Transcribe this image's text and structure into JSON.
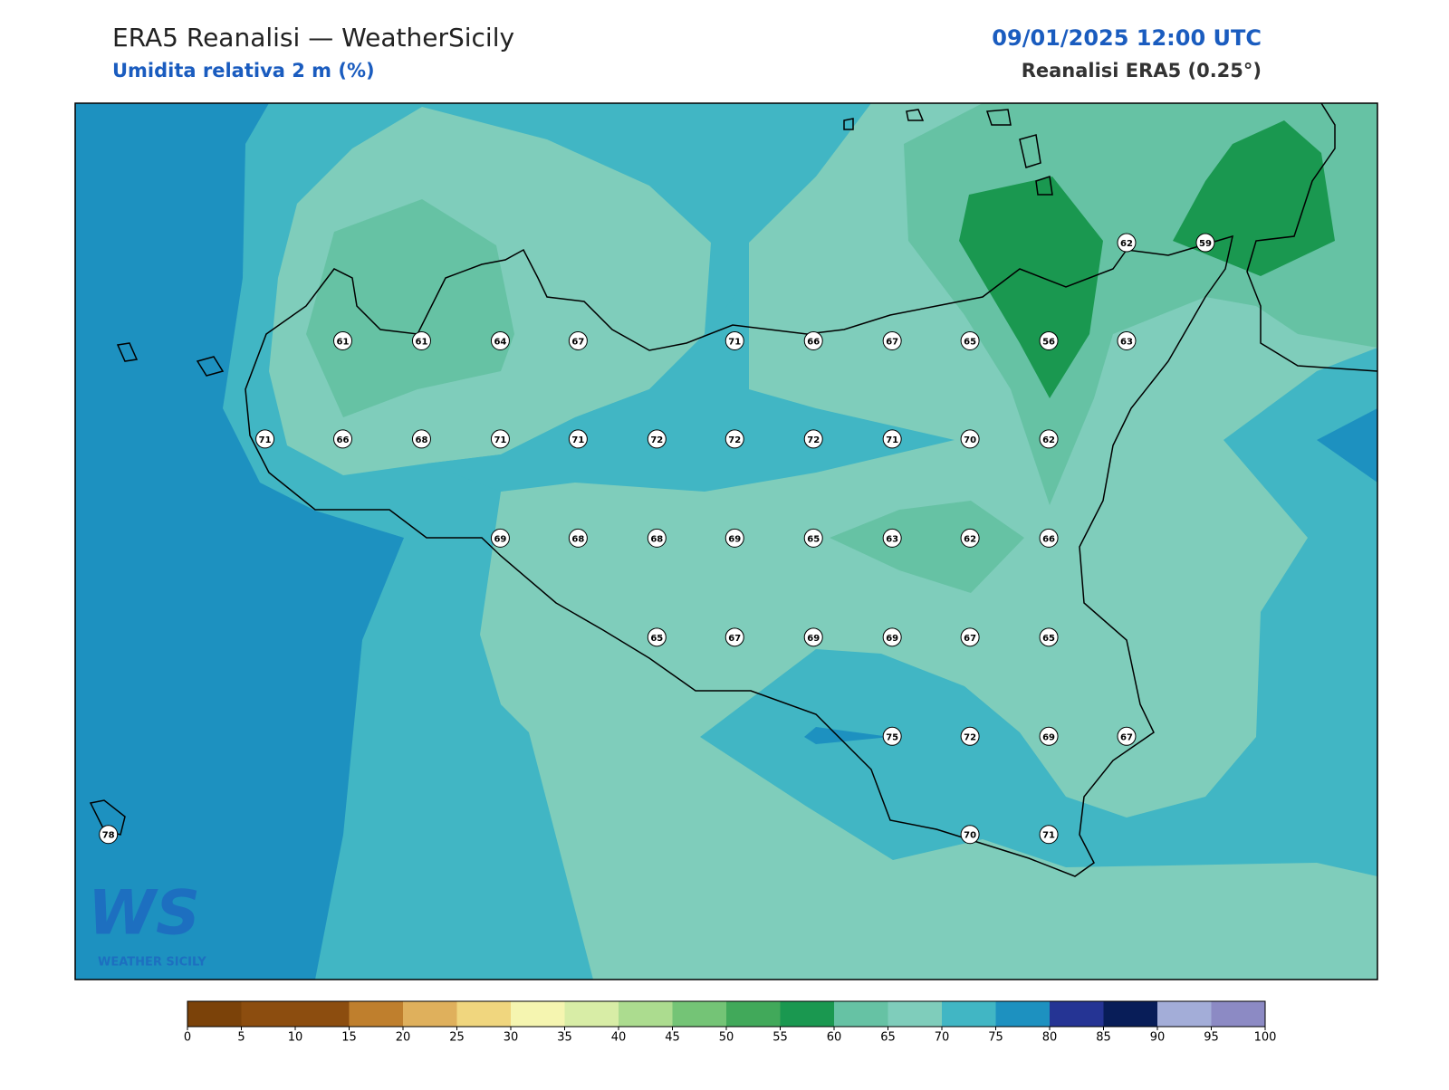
{
  "header": {
    "title": "ERA5 Reanalisi — WeatherSicily",
    "subtitle": "Umidita relativa 2 m (%)",
    "datetime": "09/01/2025 12:00 UTC",
    "source": "Reanalisi ERA5 (0.25°)"
  },
  "map": {
    "point_values": [
      62,
      59,
      61,
      61,
      64,
      67,
      71,
      66,
      67,
      65,
      56,
      63,
      71,
      66,
      68,
      71,
      71,
      72,
      72,
      72,
      71,
      70,
      62,
      69,
      68,
      68,
      69,
      65,
      63,
      62,
      66,
      65,
      67,
      69,
      69,
      67,
      65,
      75,
      72,
      69,
      67,
      78,
      70,
      71
    ]
  },
  "colorbar": {
    "ticks": [
      0,
      5,
      10,
      15,
      20,
      25,
      30,
      35,
      40,
      45,
      50,
      55,
      60,
      65,
      70,
      75,
      80,
      85,
      90,
      95,
      100
    ],
    "colors": [
      "#7b4209",
      "#8c4d0f",
      "#8c4d0f",
      "#bf7f2d",
      "#dfb05c",
      "#f0d67e",
      "#f5f5b0",
      "#d8eda6",
      "#acdc8f",
      "#74c476",
      "#41a95a",
      "#1a9850",
      "#66c2a4",
      "#7fcdbb",
      "#41b6c4",
      "#1d91c0",
      "#253494",
      "#081d58",
      "#a3add8",
      "#8c8ac4"
    ]
  },
  "logo": {
    "mark": "WS",
    "text": "WEATHER SICILY"
  }
}
